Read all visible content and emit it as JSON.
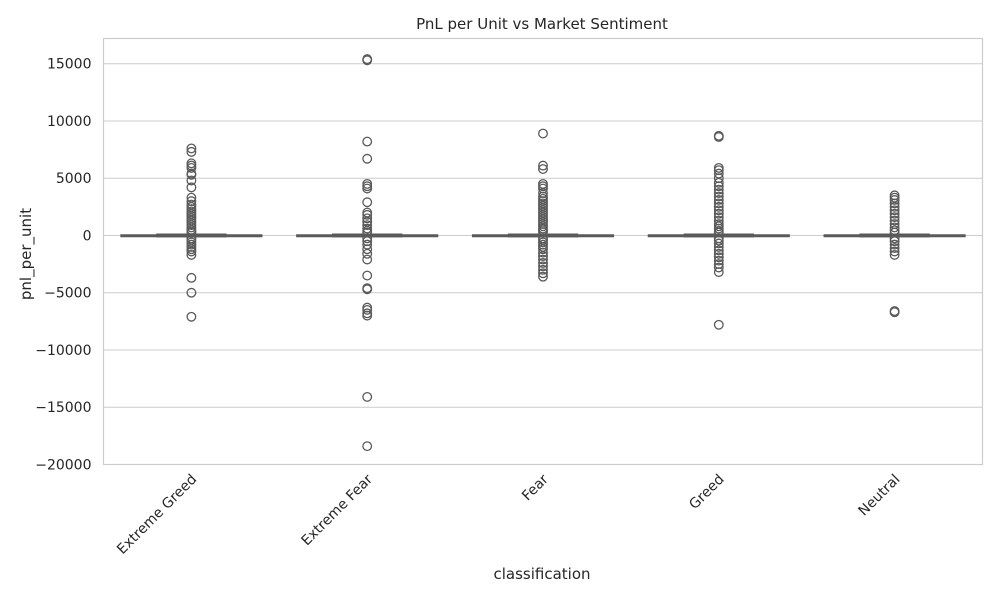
{
  "chart_data": {
    "type": "box",
    "title": "PnL per Unit vs Market Sentiment",
    "xlabel": "classification",
    "ylabel": "pnl_per_unit",
    "ylim": [
      -20000,
      17200
    ],
    "y_ticks": [
      15000,
      10000,
      5000,
      0,
      -5000,
      -10000,
      -15000,
      -20000
    ],
    "y_tick_labels": [
      "15000",
      "10000",
      "5000",
      "0",
      "−5000",
      "−10000",
      "−15000",
      "−20000"
    ],
    "grid": "horizontal",
    "colors": {
      "box_line": "#5a5a5a",
      "grid": "#cccccc",
      "frame": "#cccccc",
      "text": "#262626"
    },
    "categories": [
      "Extreme Greed",
      "Extreme Fear",
      "Fear",
      "Greed",
      "Neutral"
    ],
    "boxes": [
      {
        "category": "Extreme Greed",
        "q1": -30,
        "median": 0,
        "q3": 40,
        "whisker_low": -100,
        "whisker_high": 110,
        "outliers": [
          7600,
          7300,
          6300,
          6100,
          5900,
          5400,
          5300,
          4800,
          4200,
          3300,
          3000,
          2700,
          2500,
          2300,
          2100,
          1900,
          1700,
          1500,
          1300,
          1100,
          900,
          700,
          500,
          350,
          250,
          -250,
          -400,
          -600,
          -800,
          -1000,
          -1200,
          -1400,
          -1700,
          -3700,
          -5000,
          -7100
        ]
      },
      {
        "category": "Extreme Fear",
        "q1": -30,
        "median": 0,
        "q3": 40,
        "whisker_low": -100,
        "whisker_high": 110,
        "outliers": [
          15400,
          15300,
          8200,
          6700,
          4500,
          4300,
          4100,
          2900,
          2000,
          1800,
          1500,
          1200,
          900,
          600,
          400,
          250,
          -250,
          -500,
          -800,
          -1200,
          -1600,
          -2100,
          -3500,
          -4600,
          -4700,
          -6300,
          -6500,
          -6800,
          -7000,
          -14100,
          -18400
        ]
      },
      {
        "category": "Fear",
        "q1": -30,
        "median": 0,
        "q3": 40,
        "whisker_low": -100,
        "whisker_high": 110,
        "outliers": [
          8900,
          6100,
          5800,
          4500,
          4300,
          4100,
          3700,
          3400,
          3200,
          3000,
          2800,
          2600,
          2400,
          2200,
          2000,
          1800,
          1600,
          1400,
          1200,
          1000,
          800,
          600,
          450,
          300,
          -250,
          -400,
          -600,
          -800,
          -1000,
          -1200,
          -1500,
          -1800,
          -2100,
          -2400,
          -2700,
          -3000,
          -3300,
          -3600
        ]
      },
      {
        "category": "Greed",
        "q1": -30,
        "median": 0,
        "q3": 40,
        "whisker_low": -100,
        "whisker_high": 110,
        "outliers": [
          8700,
          8600,
          5900,
          5700,
          5400,
          5000,
          4600,
          4300,
          4000,
          3700,
          3400,
          3100,
          2800,
          2500,
          2200,
          1900,
          1600,
          1300,
          1000,
          800,
          600,
          400,
          250,
          -250,
          -450,
          -700,
          -1000,
          -1300,
          -1600,
          -1900,
          -2200,
          -2500,
          -2800,
          -3200,
          -7800
        ]
      },
      {
        "category": "Neutral",
        "q1": -30,
        "median": 0,
        "q3": 40,
        "whisker_low": -100,
        "whisker_high": 110,
        "outliers": [
          3500,
          3300,
          3100,
          2800,
          2500,
          2200,
          1900,
          1600,
          1300,
          1000,
          700,
          450,
          250,
          -250,
          -500,
          -800,
          -1100,
          -1400,
          -1700,
          -6600,
          -6700
        ]
      }
    ]
  }
}
